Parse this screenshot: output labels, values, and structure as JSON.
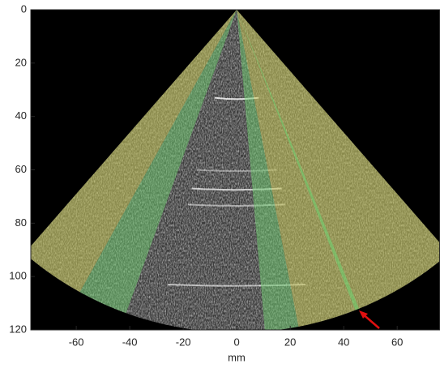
{
  "chart_data": {
    "type": "image",
    "xlabel": "mm",
    "xlim": [
      -77,
      76
    ],
    "ylim": [
      0,
      120
    ],
    "xticks": [
      -60,
      -40,
      -20,
      0,
      20,
      40,
      60
    ],
    "yticks": [
      0,
      20,
      40,
      60,
      80,
      100,
      120
    ],
    "y_reversed": true
  }
}
